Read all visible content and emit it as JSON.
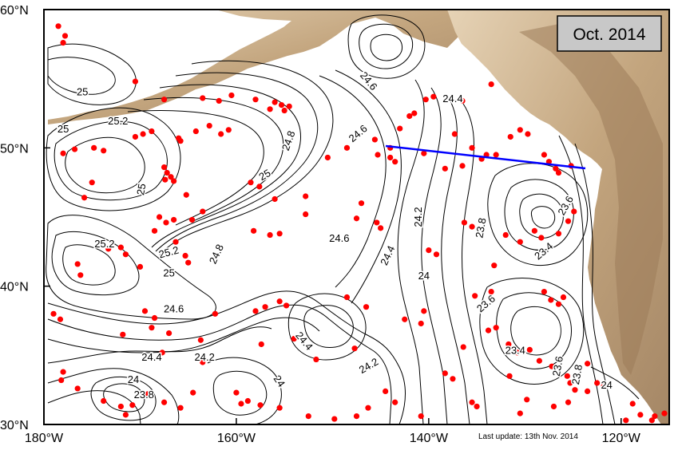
{
  "map": {
    "title": "Oct. 2014",
    "footer": "Last update: 13th Nov. 2014",
    "lon_range": [
      -180,
      -115
    ],
    "lat_range": [
      30,
      60
    ],
    "lon_ticks": [
      {
        "value": -180,
        "label": "180°W"
      },
      {
        "value": -160,
        "label": "160°W"
      },
      {
        "value": -140,
        "label": "140°W"
      },
      {
        "value": -120,
        "label": "120°W"
      }
    ],
    "lat_ticks": [
      {
        "value": 30,
        "label": "30°N"
      },
      {
        "value": 40,
        "label": "40°N"
      },
      {
        "value": 50,
        "label": "50°N"
      },
      {
        "value": 60,
        "label": "60°N"
      }
    ],
    "contour_labels": [
      {
        "text": "25",
        "lon": -176.0,
        "lat": 54.0
      },
      {
        "text": "25",
        "lon": -178.0,
        "lat": 51.3
      },
      {
        "text": "25.2",
        "lon": -172.3,
        "lat": 51.9
      },
      {
        "text": "25",
        "lon": -169.8,
        "lat": 47.0,
        "rotate": -80
      },
      {
        "text": "24.6",
        "lon": -146.3,
        "lat": 54.8,
        "rotate": 50
      },
      {
        "text": "24.8",
        "lon": -154.5,
        "lat": 50.5,
        "rotate": -70
      },
      {
        "text": "25",
        "lon": -157.0,
        "lat": 48.0,
        "rotate": -30
      },
      {
        "text": "24.6",
        "lon": -147.3,
        "lat": 51.0,
        "rotate": -40
      },
      {
        "text": "24.4",
        "lon": -137.5,
        "lat": 53.5
      },
      {
        "text": "24.2",
        "lon": -141.0,
        "lat": 45.0,
        "rotate": -90
      },
      {
        "text": "25.2",
        "lon": -173.7,
        "lat": 43.0
      },
      {
        "text": "25.2",
        "lon": -167.0,
        "lat": 42.4,
        "rotate": -15
      },
      {
        "text": "24.8",
        "lon": -162.0,
        "lat": 42.3,
        "rotate": -65
      },
      {
        "text": "25",
        "lon": -167.0,
        "lat": 40.9
      },
      {
        "text": "24.6",
        "lon": -149.3,
        "lat": 43.4
      },
      {
        "text": "24.4",
        "lon": -144.2,
        "lat": 42.2,
        "rotate": -65
      },
      {
        "text": "24",
        "lon": -140.5,
        "lat": 40.7
      },
      {
        "text": "23.8",
        "lon": -134.5,
        "lat": 44.2,
        "rotate": -80
      },
      {
        "text": "23.4",
        "lon": -128.0,
        "lat": 42.5,
        "rotate": -40
      },
      {
        "text": "23.6",
        "lon": -125.7,
        "lat": 45.8,
        "rotate": -60
      },
      {
        "text": "24.6",
        "lon": -166.5,
        "lat": 38.3
      },
      {
        "text": "24.4",
        "lon": -168.8,
        "lat": 34.8
      },
      {
        "text": "24.2",
        "lon": -163.3,
        "lat": 34.8
      },
      {
        "text": "24.4",
        "lon": -153.0,
        "lat": 36.0,
        "rotate": 50
      },
      {
        "text": "24.2",
        "lon": -146.2,
        "lat": 34.2,
        "rotate": -30
      },
      {
        "text": "24",
        "lon": -170.7,
        "lat": 33.2
      },
      {
        "text": "23.8",
        "lon": -169.6,
        "lat": 32.1
      },
      {
        "text": "24",
        "lon": -155.6,
        "lat": 33.1,
        "rotate": 55
      },
      {
        "text": "23.6",
        "lon": -134.0,
        "lat": 38.7,
        "rotate": -40
      },
      {
        "text": "23.4",
        "lon": -131.0,
        "lat": 35.3
      },
      {
        "text": "23.6",
        "lon": -126.5,
        "lat": 34.2,
        "rotate": -80
      },
      {
        "text": "23.8",
        "lon": -124.5,
        "lat": 33.6,
        "rotate": -80
      },
      {
        "text": "24",
        "lon": -121.5,
        "lat": 32.8
      }
    ],
    "colors": {
      "land": "#c9b08a",
      "land_dark": "#a68765",
      "ocean": "#ffffff",
      "contour": "#000000",
      "float_marker": "#ff0000",
      "section_line": "#0000ff",
      "title_box": "#c8c8c8"
    }
  }
}
